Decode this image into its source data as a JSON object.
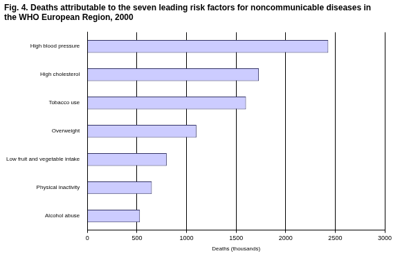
{
  "chart_data": {
    "type": "bar",
    "orientation": "horizontal",
    "title": "Fig. 4. Deaths attributable to the seven leading risk factors for noncommunicable diseases in the WHO European Region, 2000",
    "x_label": "Deaths (thousands)",
    "categories": [
      "High blood pressure",
      "High cholesterol",
      "Tobacco use",
      "Overweight",
      "Low fruit and vegetable intake",
      "Physical inactivity",
      "Alcohol abuse"
    ],
    "values": [
      2430,
      1730,
      1600,
      1100,
      800,
      650,
      530
    ],
    "color": "#ccccff",
    "xlim": [
      0,
      3000
    ],
    "xticks": [
      0,
      500,
      1000,
      1500,
      2000,
      2500,
      3000
    ],
    "grid": true
  }
}
